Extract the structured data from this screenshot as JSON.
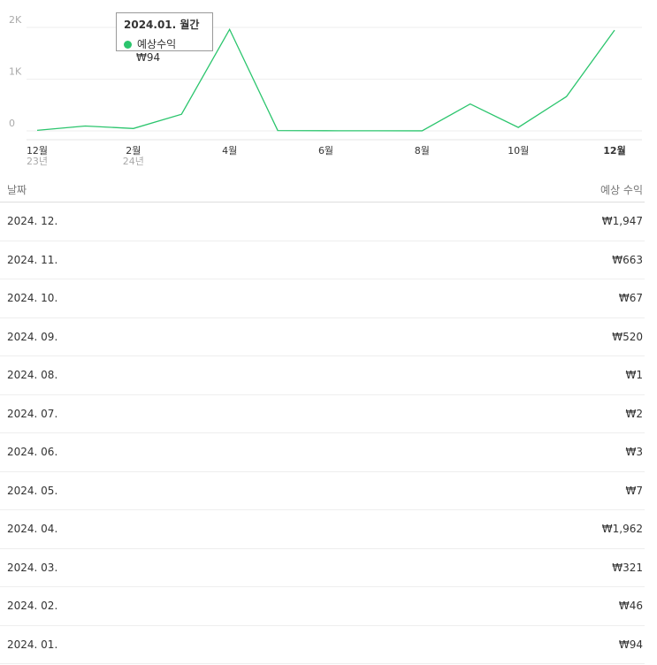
{
  "chart_data": {
    "type": "line",
    "categories": [
      "12월",
      null,
      "2월",
      null,
      "4월",
      null,
      "6월",
      null,
      "8월",
      null,
      "10월",
      null,
      "12월"
    ],
    "year_labels": [
      "23년",
      null,
      "24년",
      null,
      null,
      null,
      null,
      null,
      null,
      null,
      null,
      null,
      null
    ],
    "series": [
      {
        "name": "예상수익",
        "color": "#2bc56d",
        "values": [
          10,
          94,
          46,
          321,
          1962,
          7,
          3,
          2,
          1,
          520,
          67,
          663,
          1947
        ]
      }
    ],
    "ylim": [
      0,
      2200
    ],
    "yticks": [
      0,
      {
        "value": 1000,
        "label": "1K"
      },
      {
        "value": 2000,
        "label": "2K"
      }
    ],
    "grid": true,
    "tooltip": {
      "title": "2024.01. 월간",
      "value_label": "₩94"
    }
  },
  "table": {
    "header": [
      "날짜",
      "예상 수익"
    ],
    "rows": [
      [
        "2024. 12.",
        "₩1,947"
      ],
      [
        "2024. 11.",
        "₩663"
      ],
      [
        "2024. 10.",
        "₩67"
      ],
      [
        "2024. 09.",
        "₩520"
      ],
      [
        "2024. 08.",
        "₩1"
      ],
      [
        "2024. 07.",
        "₩2"
      ],
      [
        "2024. 06.",
        "₩3"
      ],
      [
        "2024. 05.",
        "₩7"
      ],
      [
        "2024. 04.",
        "₩1,962"
      ],
      [
        "2024. 03.",
        "₩321"
      ],
      [
        "2024. 02.",
        "₩46"
      ],
      [
        "2024. 01.",
        "₩94"
      ]
    ]
  }
}
